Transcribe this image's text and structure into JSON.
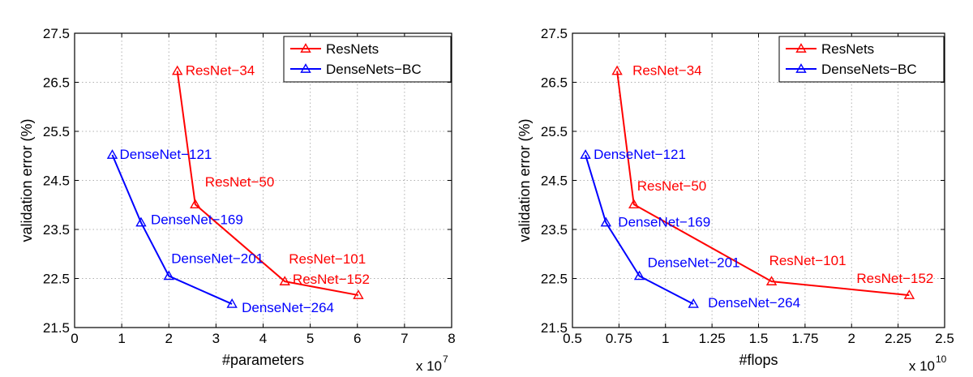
{
  "chart_data": [
    {
      "type": "line",
      "xlabel": "#parameters",
      "ylabel": "validation error (%)",
      "x_multiplier": "x 10",
      "x_multiplier_exp": "7",
      "xlim": [
        0,
        8
      ],
      "ylim": [
        21.5,
        27.5
      ],
      "xticks": [
        0,
        1,
        2,
        3,
        4,
        5,
        6,
        7,
        8
      ],
      "xtick_labels": [
        "0",
        "1",
        "2",
        "3",
        "4",
        "5",
        "6",
        "7",
        "8"
      ],
      "yticks": [
        21.5,
        22.5,
        23.5,
        24.5,
        25.5,
        26.5,
        27.5
      ],
      "ytick_labels": [
        "21.5",
        "22.5",
        "23.5",
        "24.5",
        "25.5",
        "26.5",
        "27.5"
      ],
      "grid": true,
      "legend_position": "top-right",
      "series": [
        {
          "name": "ResNets",
          "color": "#ff0000",
          "marker": "triangle",
          "points": [
            {
              "label": "ResNet−34",
              "x": 2.18,
              "y": 26.73
            },
            {
              "label": "ResNet−50",
              "x": 2.56,
              "y": 24.01
            },
            {
              "label": "ResNet−101",
              "x": 4.46,
              "y": 22.44
            },
            {
              "label": "ResNet−152",
              "x": 6.02,
              "y": 22.16
            }
          ]
        },
        {
          "name": "DenseNets−BC",
          "color": "#0000ff",
          "marker": "triangle",
          "points": [
            {
              "label": "DenseNet−121",
              "x": 0.8,
              "y": 25.02
            },
            {
              "label": "DenseNet−169",
              "x": 1.41,
              "y": 23.64
            },
            {
              "label": "DenseNet−201",
              "x": 2.0,
              "y": 22.55
            },
            {
              "label": "DenseNet−264",
              "x": 3.34,
              "y": 21.98
            }
          ]
        }
      ]
    },
    {
      "type": "line",
      "xlabel": "#flops",
      "ylabel": "validation error (%)",
      "x_multiplier": "x 10",
      "x_multiplier_exp": "10",
      "xlim": [
        0.5,
        2.5
      ],
      "ylim": [
        21.5,
        27.5
      ],
      "xticks": [
        0.5,
        0.75,
        1,
        1.25,
        1.5,
        1.75,
        2,
        2.25,
        2.5
      ],
      "xtick_labels": [
        "0.5",
        "0.75",
        "1",
        "1.25",
        "1.5",
        "1.75",
        "2",
        "2.25",
        "2.5"
      ],
      "yticks": [
        21.5,
        22.5,
        23.5,
        24.5,
        25.5,
        26.5,
        27.5
      ],
      "ytick_labels": [
        "21.5",
        "22.5",
        "23.5",
        "24.5",
        "25.5",
        "26.5",
        "27.5"
      ],
      "grid": true,
      "legend_position": "top-right",
      "series": [
        {
          "name": "ResNets",
          "color": "#ff0000",
          "marker": "triangle",
          "points": [
            {
              "label": "ResNet−34",
              "x": 0.74,
              "y": 26.73
            },
            {
              "label": "ResNet−50",
              "x": 0.83,
              "y": 24.01
            },
            {
              "label": "ResNet−101",
              "x": 1.57,
              "y": 22.44
            },
            {
              "label": "ResNet−152",
              "x": 2.31,
              "y": 22.16
            }
          ]
        },
        {
          "name": "DenseNets−BC",
          "color": "#0000ff",
          "marker": "triangle",
          "points": [
            {
              "label": "DenseNet−121",
              "x": 0.57,
              "y": 25.02
            },
            {
              "label": "DenseNet−169",
              "x": 0.68,
              "y": 23.64
            },
            {
              "label": "DenseNet−201",
              "x": 0.86,
              "y": 22.55
            },
            {
              "label": "DenseNet−264",
              "x": 1.15,
              "y": 21.98
            }
          ]
        }
      ]
    }
  ]
}
